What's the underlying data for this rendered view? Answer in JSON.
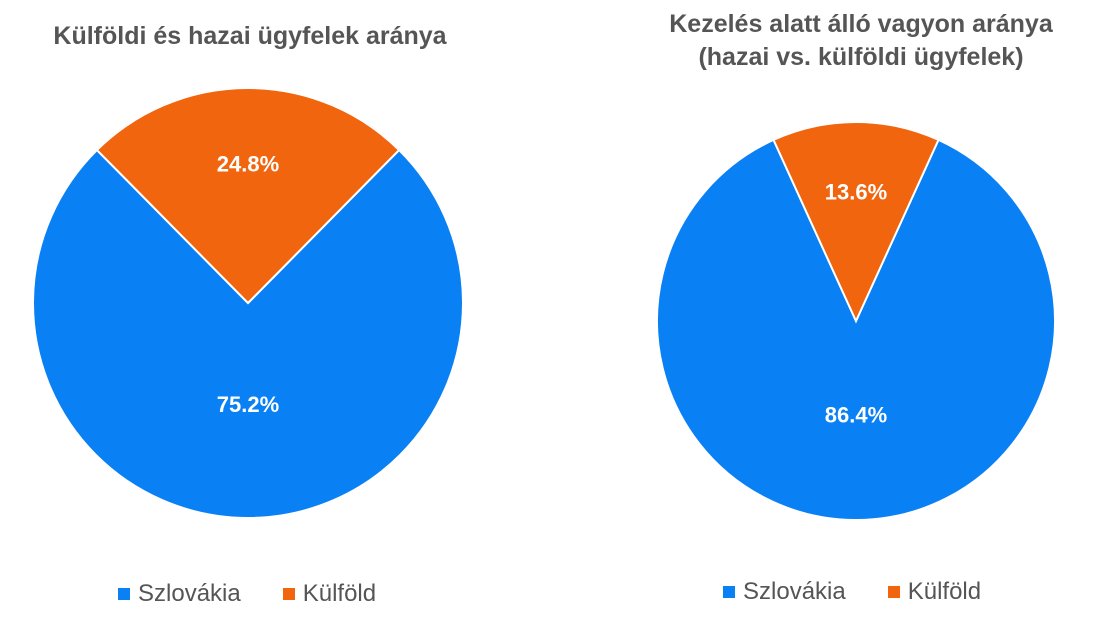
{
  "colors": {
    "Szlovákia": "#0a80f5",
    "Külföld": "#f0650e"
  },
  "chart_data": [
    {
      "type": "pie",
      "title": "Külföldi és hazai ügyfelek aránya",
      "categories": [
        "Szlovákia",
        "Külföld"
      ],
      "values": [
        75.2,
        24.8
      ],
      "data_labels": [
        "75.2%",
        "24.8%"
      ],
      "legend": "bottom"
    },
    {
      "type": "pie",
      "title": "Kezelés alatt álló vagyon aránya (hazai vs. külföldi ügyfelek)",
      "title_lines": [
        "Kezelés alatt álló vagyon aránya",
        "(hazai vs. külföldi ügyfelek)"
      ],
      "categories": [
        "Szlovákia",
        "Külföld"
      ],
      "values": [
        86.4,
        13.6
      ],
      "data_labels": [
        "86.4%",
        "13.6%"
      ],
      "legend": "bottom"
    }
  ]
}
